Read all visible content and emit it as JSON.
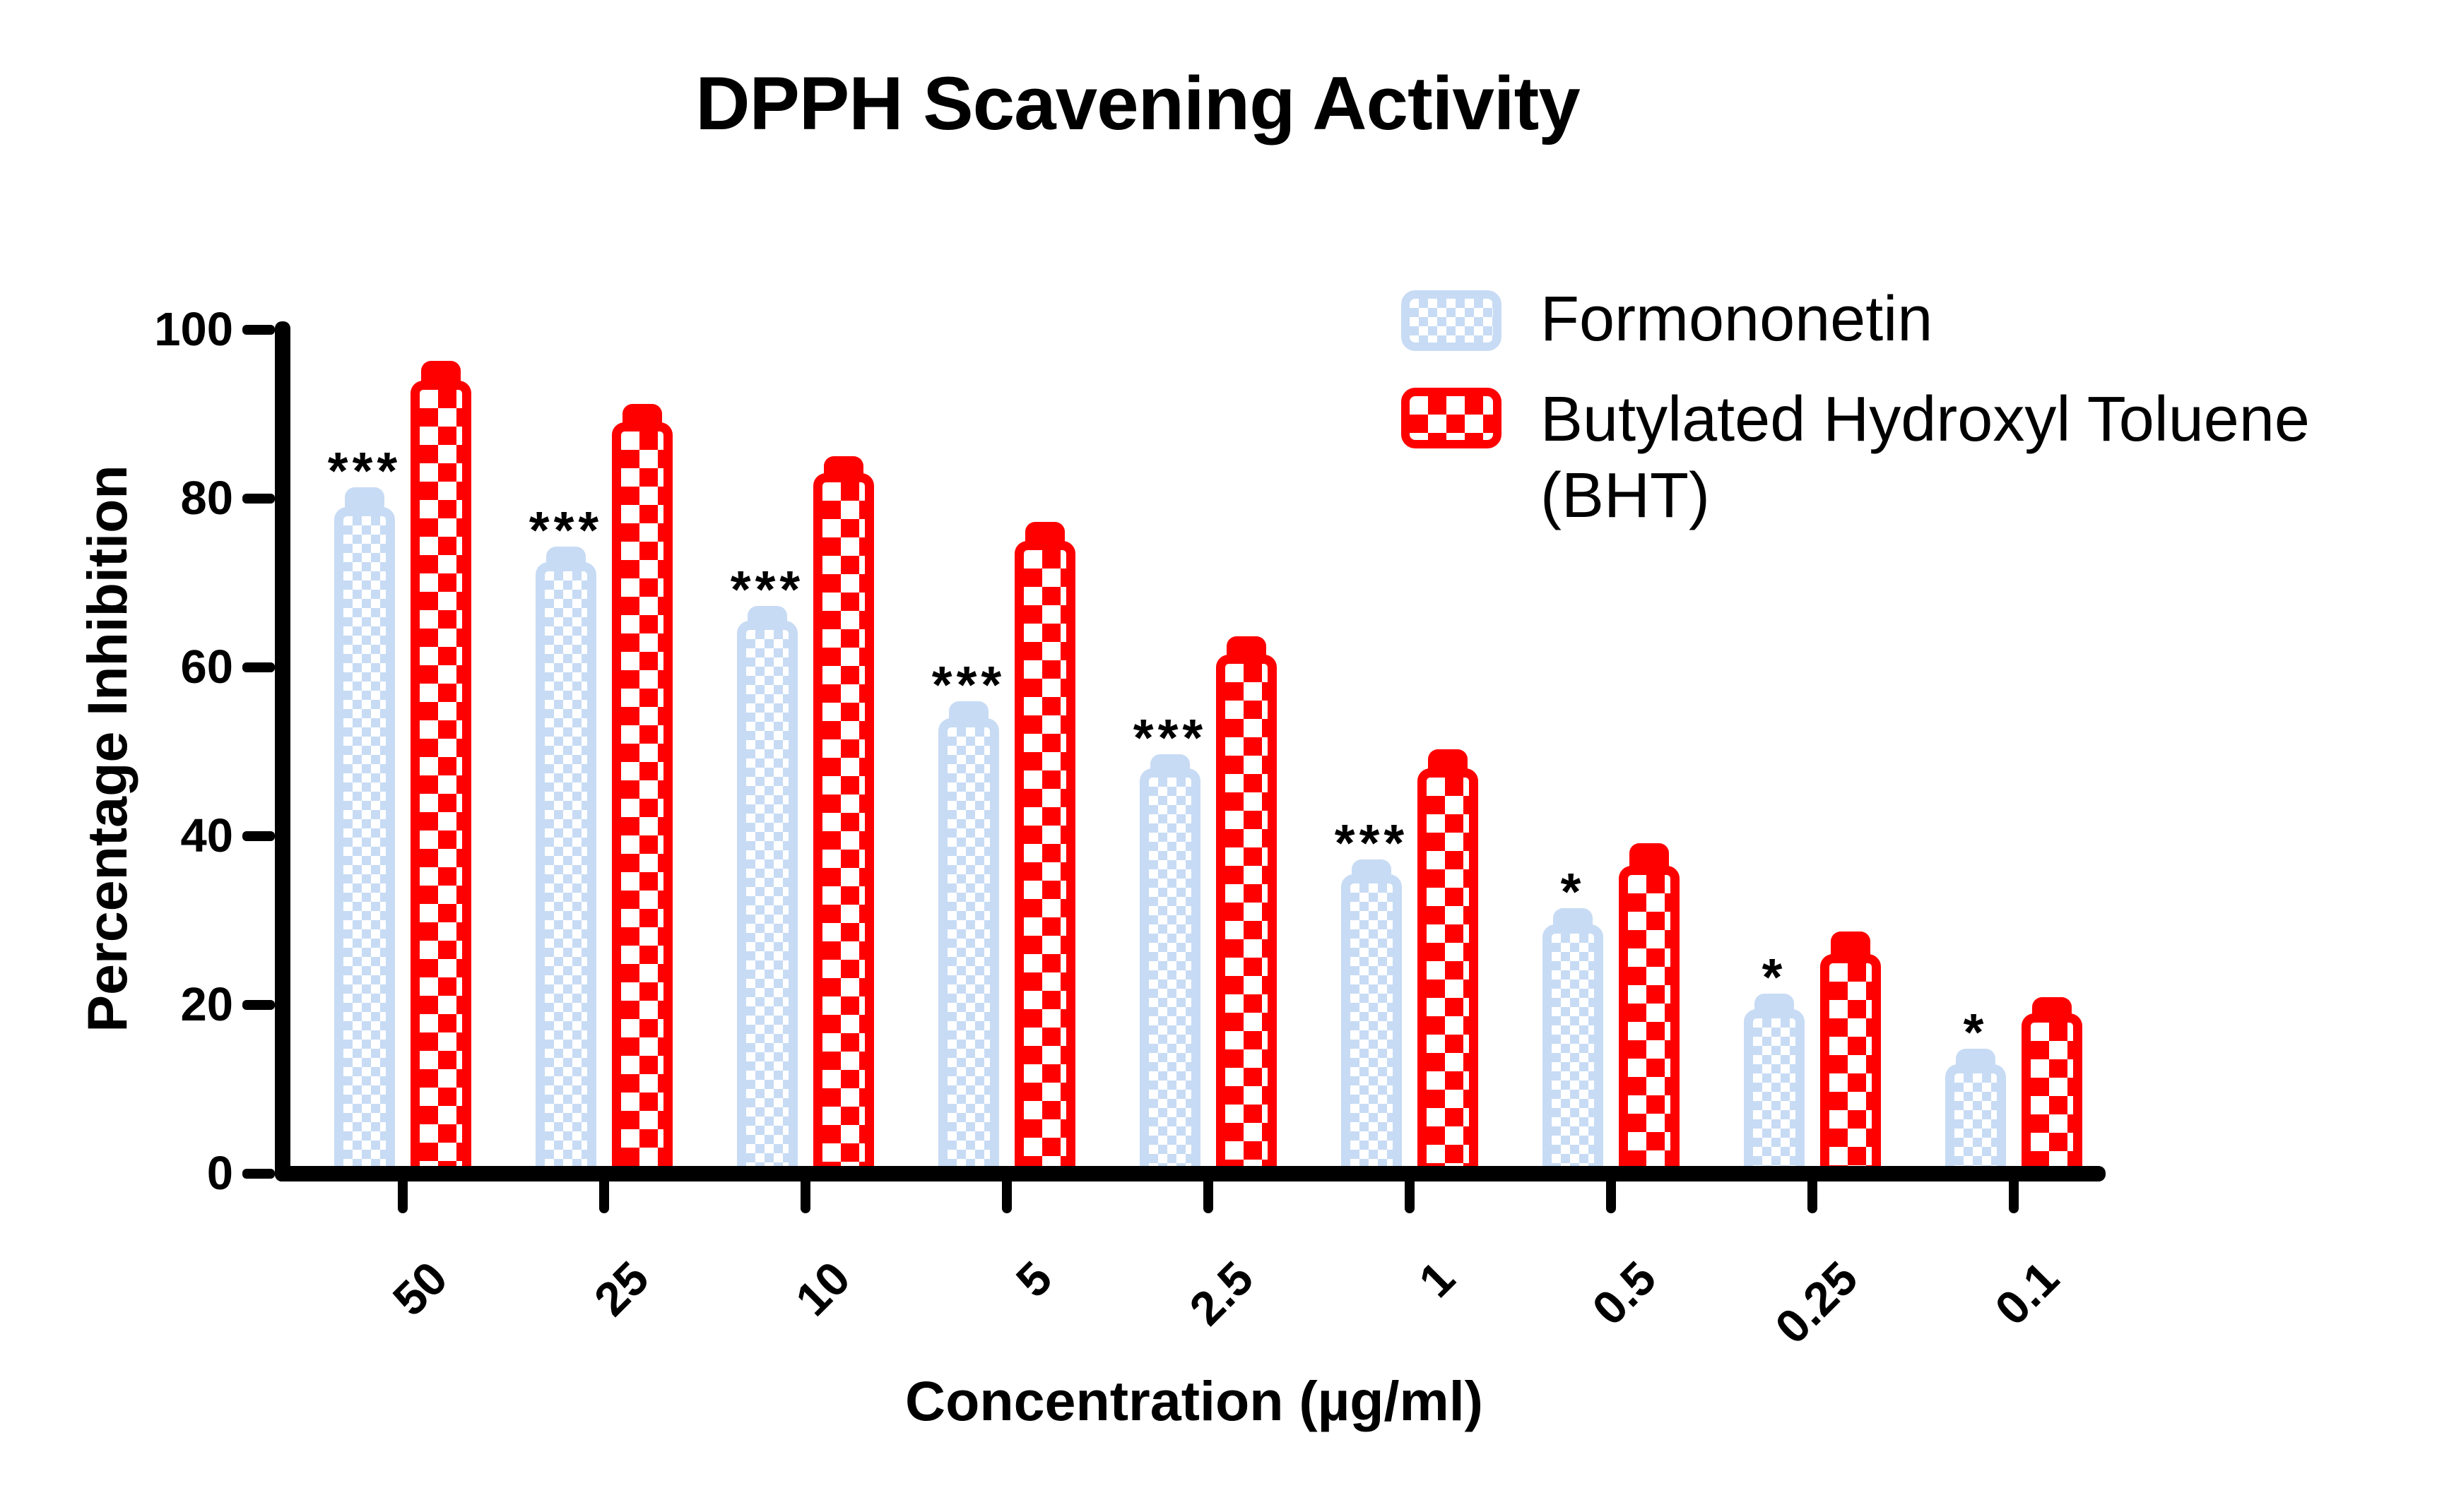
{
  "header": {
    "title": "DPPH Scavening Activity"
  },
  "axes": {
    "y_title": "Percentage Inhibition",
    "x_title": "Concentration (µg/ml)",
    "y_tick_labels": [
      "0",
      "20",
      "40",
      "60",
      "80",
      "100"
    ]
  },
  "legend": {
    "items": [
      {
        "label": "Formononetin",
        "color": "#C7DBF4"
      },
      {
        "label": "Butylated Hydroxyl Toluene (BHT)",
        "label_line1": "Butylated Hydroxyl Toluene",
        "label_line2": "(BHT)",
        "color": "#FF0000"
      }
    ]
  },
  "chart_data": {
    "type": "bar",
    "title": "DPPH Scavening Activity",
    "xlabel": "Concentration (µg/ml)",
    "ylabel": "Percentage Inhibition",
    "categories": [
      "50",
      "25",
      "10",
      "5",
      "2.5",
      "1",
      "0.5",
      "0.25",
      "0.1"
    ],
    "series": [
      {
        "name": "Formononetin",
        "color": "#C7DBF4",
        "pattern": "checkerboard-fine",
        "values": [
          79,
          72.5,
          65.5,
          54,
          48,
          35.5,
          29.5,
          19.5,
          13
        ],
        "upper_errors": [
          1.3,
          0.8,
          0.8,
          1.0,
          0.7,
          0.7,
          1.0,
          0.8,
          0.8
        ],
        "significance": [
          "***",
          "***",
          "***",
          "***",
          "***",
          "***",
          "*",
          "*",
          "*"
        ]
      },
      {
        "name": "Butylated Hydroxyl Toluene (BHT)",
        "color": "#FF0000",
        "pattern": "checkerboard-coarse",
        "values": [
          94,
          89,
          83,
          75,
          61.5,
          48,
          36.5,
          26,
          19
        ],
        "upper_errors": [
          1.3,
          1.2,
          1.0,
          1.2,
          1.2,
          1.3,
          1.7,
          1.7,
          0.9
        ]
      }
    ],
    "ylim": [
      0,
      100
    ],
    "ytick_step": 20,
    "grid": false,
    "legend_position": "top-right",
    "bar_corner": "rounded",
    "error_bars": "upper only, drawn in series color",
    "significance_note": "asterisks shown above Formononetin bars"
  }
}
